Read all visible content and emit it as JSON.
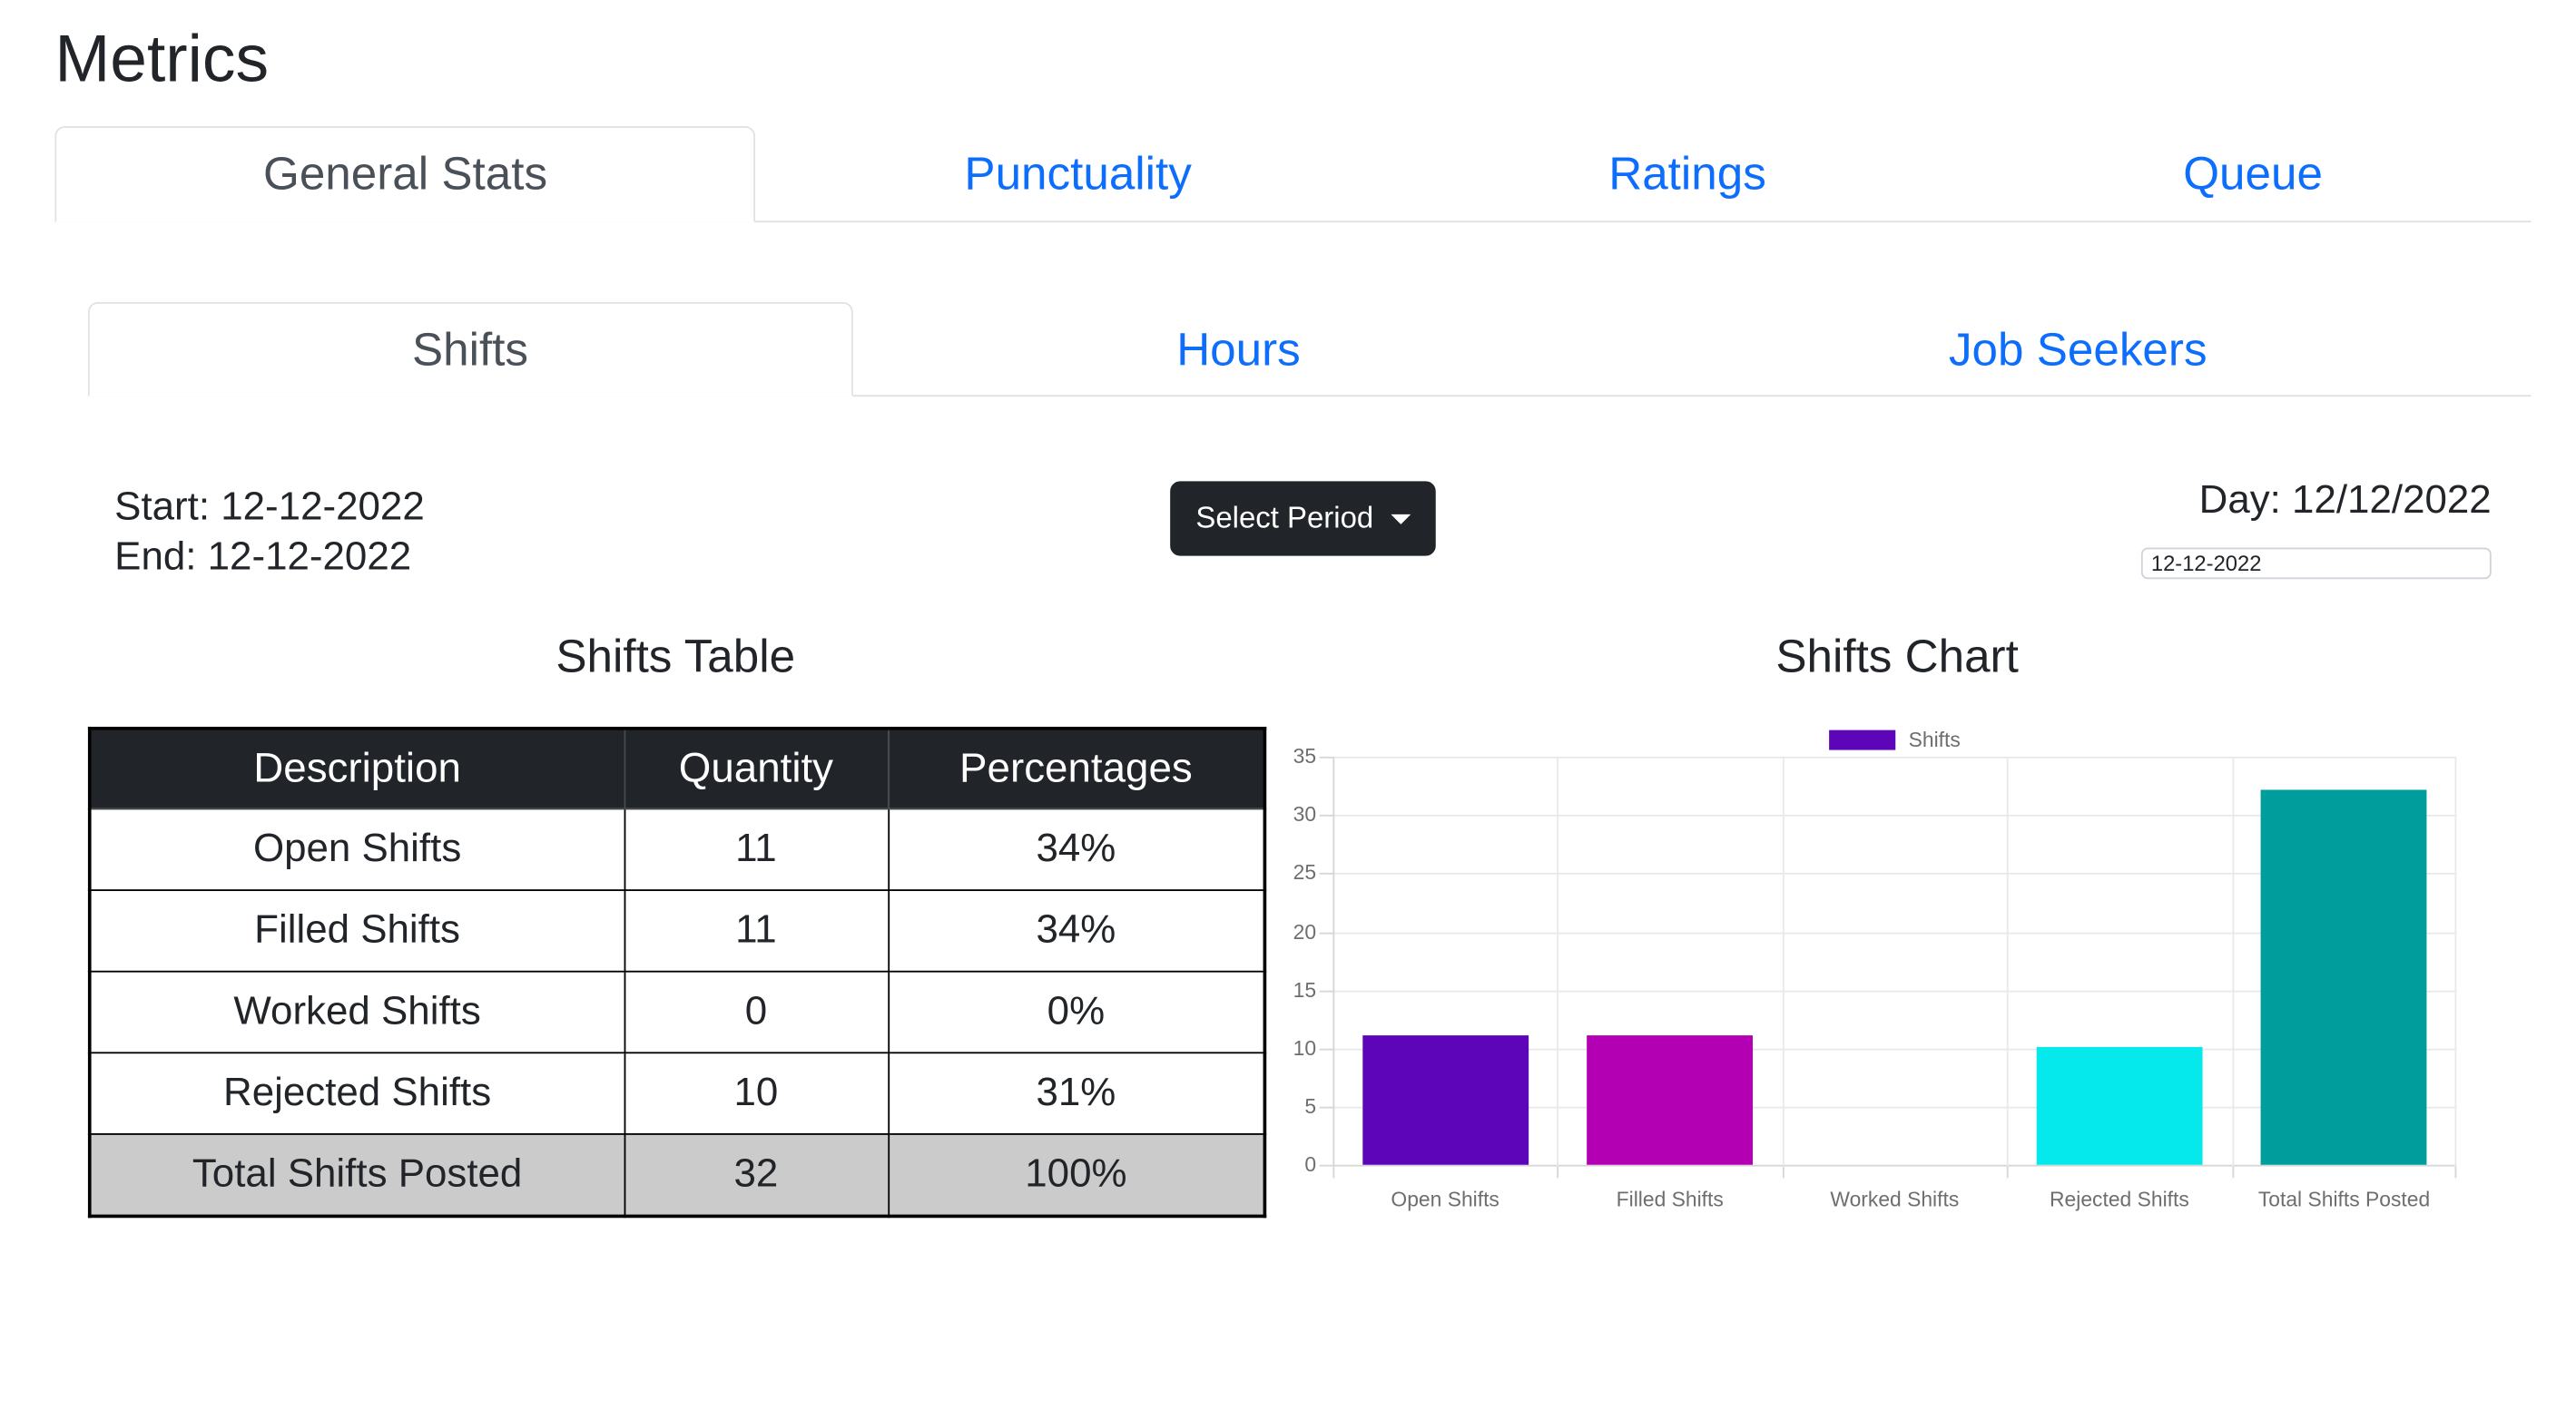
{
  "page": {
    "title": "Metrics"
  },
  "main_tabs": {
    "items": [
      {
        "label": "General Stats",
        "active": true
      },
      {
        "label": "Punctuality",
        "active": false
      },
      {
        "label": "Ratings",
        "active": false
      },
      {
        "label": "Queue",
        "active": false
      }
    ]
  },
  "sub_tabs": {
    "items": [
      {
        "label": "Shifts",
        "active": true
      },
      {
        "label": "Hours",
        "active": false
      },
      {
        "label": "Job Seekers",
        "active": false
      }
    ]
  },
  "controls": {
    "start_label": "Start: 12-12-2022",
    "end_label": "End: 12-12-2022",
    "select_period_label": "Select Period",
    "day_label": "Day: 12/12/2022",
    "date_input_value": "12-12-2022"
  },
  "table": {
    "title": "Shifts Table",
    "headers": [
      "Description",
      "Quantity",
      "Percentages"
    ],
    "rows": [
      [
        "Open Shifts",
        "11",
        "34%"
      ],
      [
        "Filled Shifts",
        "11",
        "34%"
      ],
      [
        "Worked Shifts",
        "0",
        "0%"
      ],
      [
        "Rejected Shifts",
        "10",
        "31%"
      ],
      [
        "Total Shifts Posted",
        "32",
        "100%"
      ]
    ]
  },
  "chart_data": {
    "type": "bar",
    "title": "Shifts Chart",
    "legend": [
      {
        "label": "Shifts",
        "color": "#5d05b8"
      }
    ],
    "legend_position": "top",
    "categories": [
      "Open Shifts",
      "Filled Shifts",
      "Worked Shifts",
      "Rejected Shifts",
      "Total Shifts Posted"
    ],
    "values": [
      11,
      11,
      0,
      10,
      32
    ],
    "bar_colors": [
      "#5d05b8",
      "#b300b2",
      "#888888",
      "#06e9ec",
      "#009d9d"
    ],
    "ylim": [
      0,
      35
    ],
    "ytick_step": 5,
    "grid": true
  },
  "colors": {
    "link_blue": "#0d6efd",
    "active_tab_text": "#495057",
    "tab_border": "#dee2e6",
    "table_header_bg": "#212529",
    "table_total_bg": "#cbcbcb",
    "button_bg": "#212529",
    "chart_grid": "#e9e9e9",
    "chart_axis": "#d6d6d6",
    "chart_tick_text": "#6e6e6e"
  }
}
